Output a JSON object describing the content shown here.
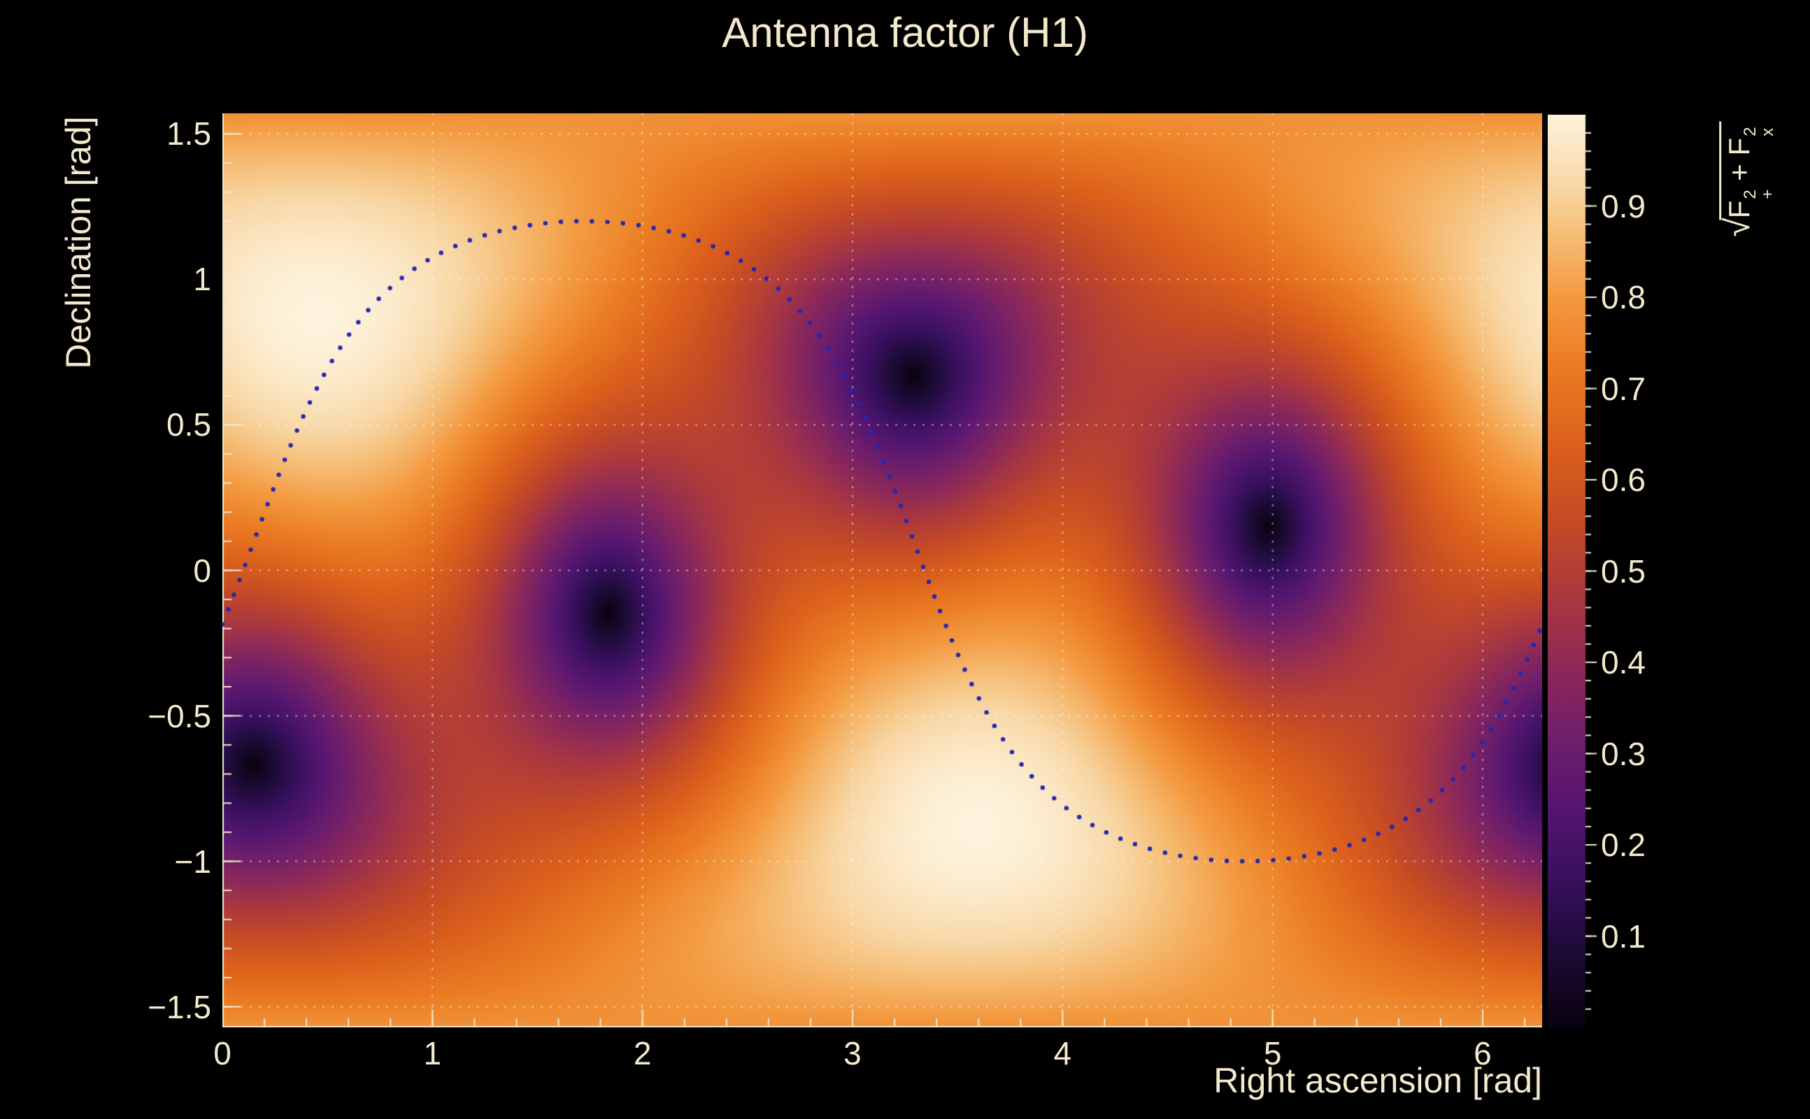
{
  "figure": {
    "background": "#000000",
    "ink": "#f3e9cd"
  },
  "chart_data": {
    "type": "heatmap",
    "title": "Antenna factor (H1)",
    "xlabel": "Right ascension [rad]",
    "ylabel": "Declination [rad]",
    "zlabel": {
      "plain": "sqrt(F+^2 + Fx^2)",
      "radical": "√",
      "f1": {
        "base": "F",
        "sup": "2",
        "sub": "+"
      },
      "plus": " + ",
      "f2": {
        "base": "F",
        "sup": "2",
        "sub": "x"
      }
    },
    "x_range": [
      0,
      6.2831853
    ],
    "y_range": [
      -1.5707963,
      1.5707963
    ],
    "z_range": [
      0,
      1
    ],
    "x_ticks": {
      "values": [
        0,
        1,
        2,
        3,
        4,
        5,
        6
      ],
      "labels": [
        "0",
        "1",
        "2",
        "3",
        "4",
        "5",
        "6"
      ],
      "minor_step": 0.2
    },
    "y_ticks": {
      "values": [
        1.5,
        1,
        0.5,
        0,
        -0.5,
        -1,
        -1.5
      ],
      "labels": [
        "1.5",
        "1",
        "0.5",
        "0",
        "−0.5",
        "−1",
        "−1.5"
      ],
      "minor_step": 0.1
    },
    "z_ticks": {
      "values": [
        0.9,
        0.8,
        0.7,
        0.6,
        0.5,
        0.4,
        0.3,
        0.2,
        0.1
      ],
      "labels": [
        "0.9",
        "0.8",
        "0.7",
        "0.6",
        "0.5",
        "0.4",
        "0.3",
        "0.2",
        "0.1"
      ],
      "minor_step": 0.02
    },
    "model": {
      "kind": "interferometer-antenna-response",
      "formula": "sqrt(0.25*(1+cos^2(theta))^2*cos^2(2*phi) + cos^2(theta)*sin^2(2*phi))",
      "zenith_ra": 0.45,
      "zenith_dec": 0.88,
      "azimuth_offset": -0.55
    },
    "features": {
      "maxima_ra_dec": [
        [
          0.45,
          0.88
        ],
        [
          3.59,
          -0.88
        ]
      ],
      "nulls_ra_dec": [
        [
          1.8,
          -0.1
        ],
        [
          4.98,
          0.15
        ],
        [
          3.29,
          0.67
        ],
        [
          0.15,
          -0.67
        ]
      ]
    },
    "colormap": [
      [
        0.0,
        "#0a0210"
      ],
      [
        0.08,
        "#1c0b35"
      ],
      [
        0.16,
        "#38105e"
      ],
      [
        0.24,
        "#541670"
      ],
      [
        0.32,
        "#711f6a"
      ],
      [
        0.4,
        "#8f2a57"
      ],
      [
        0.48,
        "#ad3a3c"
      ],
      [
        0.56,
        "#c74c24"
      ],
      [
        0.64,
        "#dc611c"
      ],
      [
        0.72,
        "#ea7b22"
      ],
      [
        0.8,
        "#f39a40"
      ],
      [
        0.86,
        "#f5b96f"
      ],
      [
        0.92,
        "#f8d7a5"
      ],
      [
        1.0,
        "#fdf3dc"
      ]
    ],
    "grid": {
      "color": "rgba(255,255,255,0.5)",
      "dash": [
        3,
        10
      ]
    },
    "overlay_curve": {
      "kind": "dotted-sky-circle",
      "offset": 0.1,
      "inclination": 1.1,
      "node_ra": 0.15,
      "color": "#2626b0",
      "dot_radius": 3.2,
      "dot_spacing_px": 22
    }
  }
}
